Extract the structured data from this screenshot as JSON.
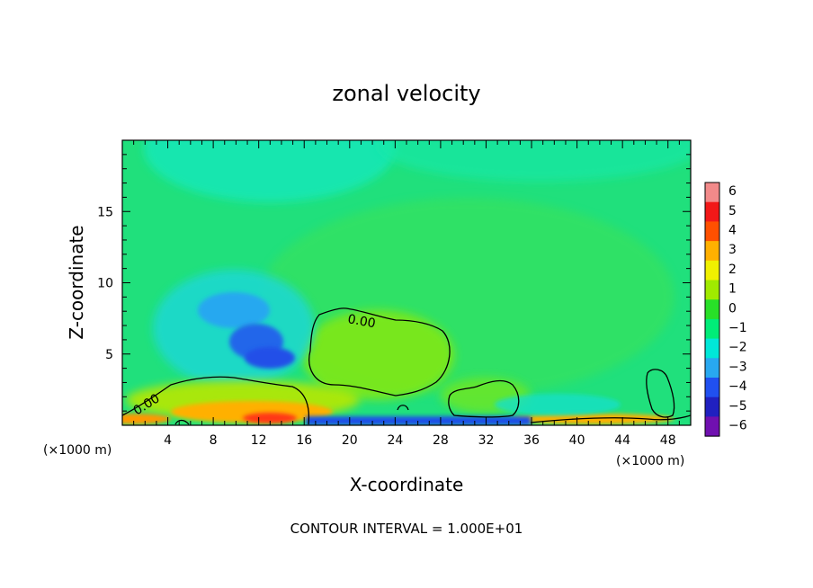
{
  "chart_data": {
    "type": "heatmap",
    "title": "zonal velocity",
    "xlabel": "X-coordinate",
    "ylabel": "Z-coordinate",
    "x_unit_left": "(×1000 m)",
    "x_unit_right": "(×1000 m)",
    "footer": "CONTOUR INTERVAL = 1.000E+01",
    "xlim": [
      0,
      50
    ],
    "ylim": [
      0,
      20
    ],
    "x_ticks": [
      4,
      8,
      12,
      16,
      20,
      24,
      28,
      32,
      36,
      40,
      44,
      48
    ],
    "y_ticks": [
      5,
      10,
      15
    ],
    "colorbar": {
      "levels": [
        6,
        5,
        4,
        3,
        2,
        1,
        0,
        -1,
        -2,
        -3,
        -4,
        -5,
        -6
      ],
      "colors": [
        "#f28a8a",
        "#f21818",
        "#ff5000",
        "#ffb000",
        "#f0f000",
        "#a0ea00",
        "#28e028",
        "#00ec78",
        "#00e8d8",
        "#28a8f0",
        "#2050f0",
        "#2020c0",
        "#7010b0"
      ]
    },
    "contour_labels": [
      {
        "text": "0.00",
        "x": 20,
        "z": 7.9
      },
      {
        "text": "0.00",
        "x": 2.0,
        "z": 2.0
      }
    ],
    "features": [
      {
        "name": "negative-core",
        "x": 11.5,
        "z": 5.6,
        "value": -3
      },
      {
        "name": "positive-surface-jet",
        "x": 12.5,
        "z": 0.7,
        "value": 3
      },
      {
        "name": "positive-bubble",
        "x": 24,
        "z": 5.0,
        "value": 0.5
      }
    ]
  },
  "colors": {
    "background": "#ffffff",
    "field_base": "#1fe07a",
    "contour": "#000000"
  }
}
